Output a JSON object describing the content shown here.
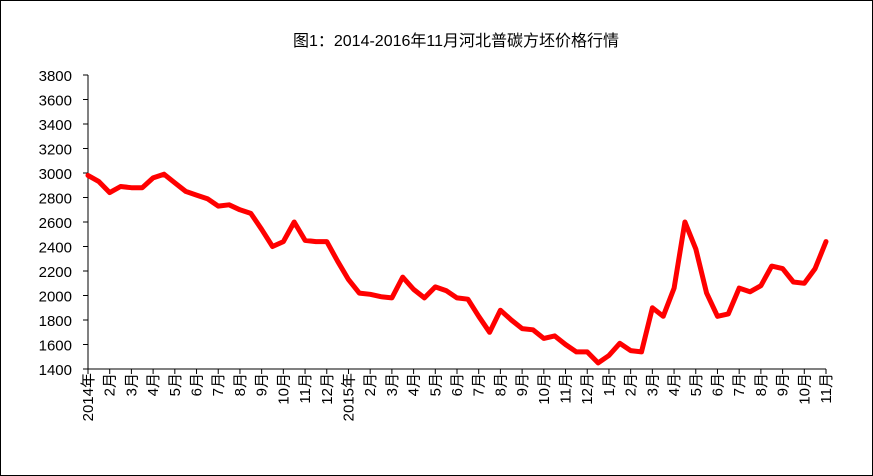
{
  "chart_data": {
    "type": "line",
    "title": "图1：2014-2016年11月河北普碳方坯价格行情",
    "categories": [
      "2014年",
      null,
      "2月",
      null,
      "3月",
      null,
      "4月",
      null,
      "5月",
      null,
      "6月",
      null,
      "7月",
      null,
      "8月",
      null,
      "9月",
      null,
      "10月",
      null,
      "11月",
      null,
      "12月",
      null,
      "2015年",
      null,
      "2月",
      null,
      "3月",
      null,
      "4月",
      null,
      "5月",
      null,
      "6月",
      null,
      "7月",
      null,
      "8月",
      null,
      "9月",
      null,
      "10月",
      null,
      "11月",
      null,
      "12月",
      null,
      "1月",
      null,
      "2月",
      null,
      "3月",
      null,
      "4月",
      null,
      "5月",
      null,
      "6月",
      null,
      "7月",
      null,
      "8月",
      null,
      "9月",
      null,
      "10月",
      null,
      "11月"
    ],
    "series": [
      {
        "color": "#ff0000",
        "values": [
          2980,
          2930,
          2840,
          2890,
          2880,
          2880,
          2960,
          2990,
          2920,
          2850,
          2820,
          2790,
          2730,
          2740,
          2700,
          2670,
          2540,
          2400,
          2440,
          2600,
          2450,
          2440,
          2440,
          2280,
          2130,
          2020,
          2010,
          1990,
          1980,
          2150,
          2050,
          1980,
          2070,
          2040,
          1980,
          1970,
          1830,
          1700,
          1880,
          1800,
          1730,
          1720,
          1650,
          1670,
          1600,
          1540,
          1540,
          1450,
          1510,
          1610,
          1550,
          1540,
          1900,
          1830,
          2060,
          2600,
          2380,
          2020,
          1830,
          1850,
          2060,
          2030,
          2080,
          2240,
          2220,
          2110,
          2100,
          2220,
          2440
        ]
      }
    ],
    "ylim": [
      1400,
      3800
    ],
    "yticks": [
      1400,
      1600,
      1800,
      2000,
      2200,
      2400,
      2600,
      2800,
      3000,
      3200,
      3400,
      3600,
      3800
    ]
  }
}
